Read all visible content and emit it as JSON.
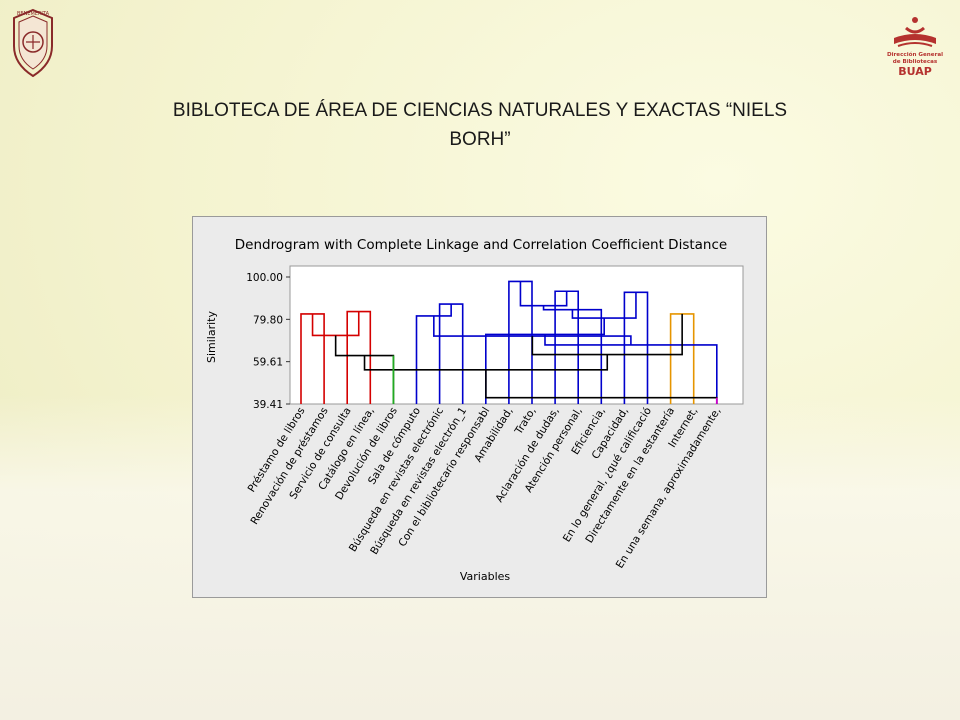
{
  "slide": {
    "title": "BIBLOTECA DE ÁREA DE CIENCIAS NATURALES Y EXACTAS “NIELS BORH”",
    "logo_right_text": [
      "Dirección General",
      "de Bibliotecas",
      "BUAP"
    ],
    "logo_left_text": "BENEMERITA"
  },
  "chart_data": {
    "type": "dendrogram",
    "title": "Dendrogram with Complete Linkage and Correlation Coefficient Distance",
    "xlabel": "Variables",
    "ylabel": "Similarity",
    "yticks": [
      "39.41",
      "59.61",
      "79.80",
      "100.00"
    ],
    "ylim": [
      100.0,
      39.41
    ],
    "leaves": [
      "Préstamo de libros",
      "Renovación de préstamos",
      "Servicio de consulta",
      "Catálogo en línea,",
      "Devolución de libros",
      "Sala de cómputo",
      "Búsqueda en revistas electrónic",
      "Búsqueda en revistas electrón_1",
      "Con el bibliotecario responsabl",
      "Amabilidad,",
      "Trato,",
      "Aclaración de dudas,",
      "Atención personal,",
      "Eficiencia,",
      "Capacidad,",
      "En lo general, ¿qué calificació",
      "Directamente en la estantería",
      "Internet,",
      "En una semana, aproximadamente,"
    ],
    "merges": [
      {
        "a": "L9",
        "b": "L10",
        "similarity": 97.9,
        "color": "#0000cc"
      },
      {
        "a": "L0",
        "b": "L1",
        "similarity": 82.4,
        "color": "#d40000"
      },
      {
        "a": "L2",
        "b": "L3",
        "similarity": 83.5,
        "color": "#d40000"
      },
      {
        "a": "L6",
        "b": "L7",
        "similarity": 87.1,
        "color": "#0000cc"
      },
      {
        "a": "L11",
        "b": "L12",
        "similarity": 93.2,
        "color": "#0000cc"
      },
      {
        "a": "L14",
        "b": "L15",
        "similarity": 92.7,
        "color": "#0000cc"
      },
      {
        "a": "L16",
        "b": "L17",
        "similarity": 82.4,
        "color": "#e69500"
      },
      {
        "a": "M0",
        "b": "M4",
        "similarity": 86.3,
        "color": "#0000cc"
      },
      {
        "a": "M7",
        "b": "L13",
        "similarity": 84.4,
        "color": "#0000cc"
      },
      {
        "a": "L5",
        "b": "M3",
        "similarity": 81.4,
        "color": "#0000cc"
      },
      {
        "a": "M8",
        "b": "M5",
        "similarity": 80.4,
        "color": "#0000cc"
      },
      {
        "a": "M1",
        "b": "M2",
        "similarity": 72.1,
        "color": "#d40000"
      },
      {
        "a": "L8",
        "b": "M10",
        "similarity": 72.6,
        "color": "#0000cc"
      },
      {
        "a": "M12",
        "b": "L18",
        "similarity": 67.6,
        "color": "#0000cc"
      },
      {
        "a": "M9",
        "b": "M13",
        "similarity": 71.8,
        "color": "#0000cc"
      },
      {
        "a": "M11",
        "b": "L4",
        "similarity": 62.5,
        "color": "#000000"
      },
      {
        "a": "M14",
        "b": "M6",
        "similarity": 63.0,
        "color": "#000000"
      },
      {
        "a": "M15",
        "b": "M16",
        "similarity": 55.7,
        "color": "#000000"
      },
      {
        "a": "M17",
        "b": "L18",
        "similarity": 42.4,
        "color": "#000000"
      }
    ],
    "leaf_colors": {
      "L4": "#22aa22",
      "L18": "#cc00cc"
    },
    "colors": {
      "red": "#d40000",
      "blue": "#0000cc",
      "green": "#22aa22",
      "orange": "#e69500",
      "magenta": "#cc00cc",
      "black": "#000000"
    }
  }
}
